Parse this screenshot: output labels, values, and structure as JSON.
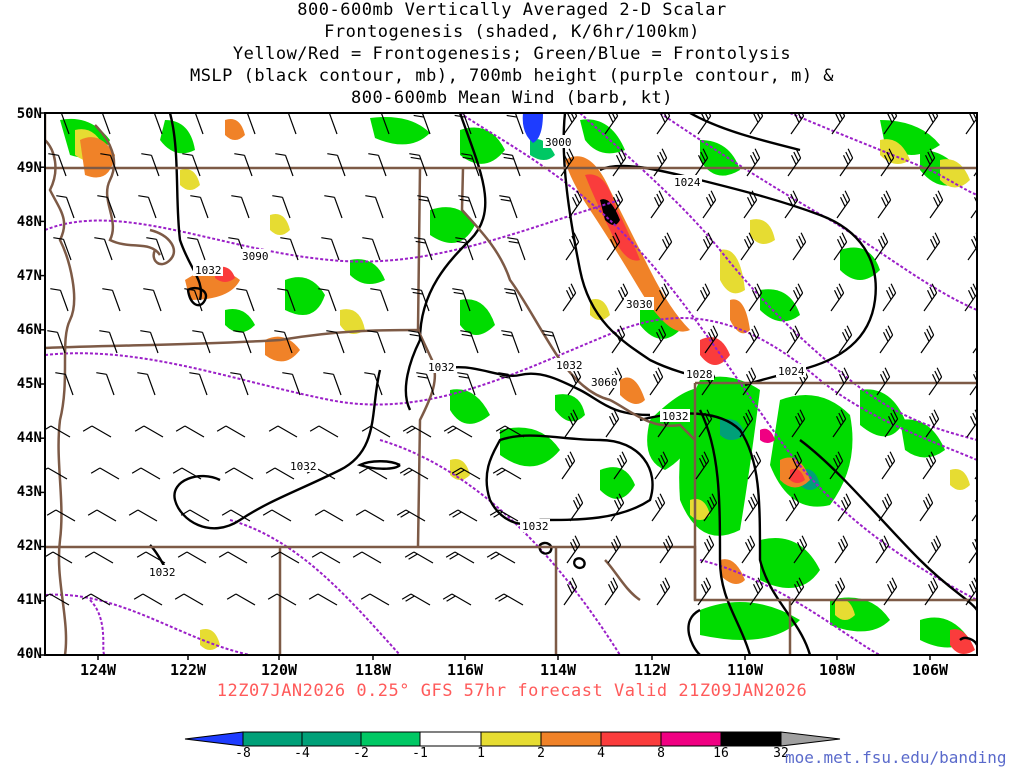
{
  "title_lines": [
    "800-600mb Vertically Averaged 2-D Scalar",
    "Frontogenesis (shaded, K/6hr/100km)",
    "Yellow/Red = Frontogenesis;  Green/Blue = Frontolysis",
    "MSLP (black contour, mb), 700mb height (purple contour, m) &",
    "800-600mb Mean Wind (barb, kt)"
  ],
  "lat_labels": [
    "50N",
    "49N",
    "48N",
    "47N",
    "46N",
    "45N",
    "44N",
    "43N",
    "42N",
    "41N",
    "40N"
  ],
  "lon_labels": [
    "124W",
    "122W",
    "120W",
    "118W",
    "116W",
    "114W",
    "112W",
    "110W",
    "108W",
    "106W"
  ],
  "contour_labels": {
    "mslp": [
      "1032",
      "1032",
      "1032",
      "1032",
      "1032",
      "1032",
      "1028",
      "1024",
      "1024",
      "1032"
    ],
    "height": [
      "3000",
      "3090",
      "3030",
      "3060"
    ]
  },
  "valid_line": "12Z07JAN2026 0.25° GFS 57hr forecast Valid 21Z09JAN2026",
  "colorbar": {
    "labels": [
      "-8",
      "-4",
      "-2",
      "-1",
      "1",
      "2",
      "4",
      "8",
      "16",
      "32"
    ],
    "colors": [
      "#1e3cff",
      "#00a078",
      "#00c864",
      "#00dc00",
      "#ffffff",
      "#e6dc32",
      "#f08228",
      "#fa3c3c",
      "#f00082",
      "#000000",
      "#a0a0a0"
    ]
  },
  "credit": "moe.met.fsu.edu/banding"
}
